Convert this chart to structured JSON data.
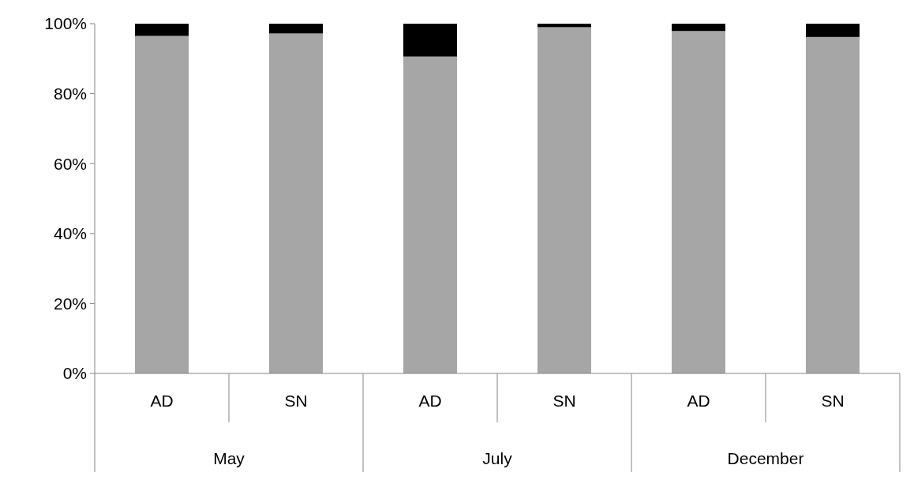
{
  "chart_data": {
    "type": "bar",
    "stacked": true,
    "categories": [
      "AD",
      "SN",
      "AD",
      "SN",
      "AD",
      "SN"
    ],
    "series": [
      {
        "color": "#a6a6a6",
        "values": [
          96.5,
          97.2,
          90.6,
          99.0,
          97.9,
          96.2
        ]
      },
      {
        "color": "#000000",
        "values": [
          3.5,
          2.8,
          9.4,
          1.0,
          2.1,
          3.8
        ]
      }
    ],
    "ylim": [
      0,
      100
    ],
    "yticks": [
      {
        "value": 0,
        "label": "0%"
      },
      {
        "value": 20,
        "label": "20%"
      },
      {
        "value": 40,
        "label": "40%"
      },
      {
        "value": 60,
        "label": "60%"
      },
      {
        "value": 80,
        "label": "80%"
      },
      {
        "value": 100,
        "label": "100%"
      }
    ],
    "annotations": [
      "May",
      "July",
      "December"
    ],
    "grid": false
  }
}
